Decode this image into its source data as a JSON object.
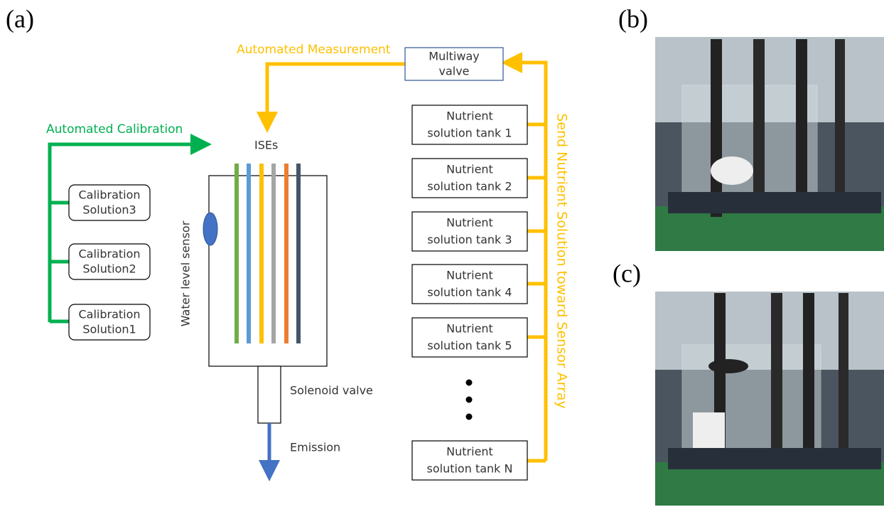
{
  "panel_labels": {
    "a": "(a)",
    "b": "(b)",
    "c": "(c)"
  },
  "measurement": {
    "label": "Automated Measurement",
    "valve": [
      "Multiway",
      "valve"
    ]
  },
  "calibration": {
    "label": "Automated Calibration",
    "solutions": [
      [
        "Calibration",
        "Solution3"
      ],
      [
        "Calibration",
        "Solution2"
      ],
      [
        "Calibration",
        "Solution1"
      ]
    ]
  },
  "sensor": {
    "ises": "ISEs",
    "water_level": "Water level sensor",
    "solenoid": "Solenoid valve",
    "emission": "Emission"
  },
  "tanks": [
    [
      "Nutrient",
      "solution tank 1"
    ],
    [
      "Nutrient",
      "solution tank 2"
    ],
    [
      "Nutrient",
      "solution tank 3"
    ],
    [
      "Nutrient",
      "solution tank 4"
    ],
    [
      "Nutrient",
      "solution tank 5"
    ],
    [
      "Nutrient",
      "solution tank N"
    ]
  ],
  "send_label": "Send Nutrient Solution toward Sensor Array"
}
